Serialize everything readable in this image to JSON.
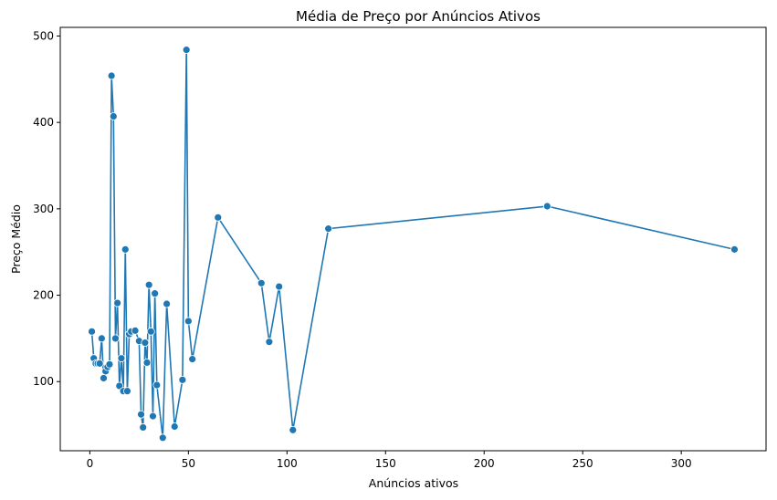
{
  "chart_data": {
    "type": "line",
    "title": "Média de Preço por Anúncios Ativos",
    "xlabel": "Anúncios ativos",
    "ylabel": "Preço Médio",
    "xlim": [
      -15,
      343
    ],
    "ylim": [
      20,
      510
    ],
    "xticks": [
      0,
      50,
      100,
      150,
      200,
      250,
      300
    ],
    "yticks": [
      100,
      200,
      300,
      400,
      500
    ],
    "grid": false,
    "legend": "none",
    "color": "#1f77b4",
    "marker": "circle",
    "series": [
      {
        "x": [
          1,
          2,
          3,
          4,
          5,
          6,
          7,
          8,
          9,
          10,
          11,
          12,
          13,
          14,
          15,
          16,
          17,
          18,
          19,
          20,
          21,
          23,
          25,
          26,
          27,
          28,
          29,
          30,
          31,
          32,
          33,
          34,
          37,
          39,
          43,
          47,
          49,
          50,
          52,
          65,
          87,
          91,
          96,
          103,
          121,
          232,
          327
        ],
        "y": [
          158,
          127,
          121,
          121,
          121,
          150,
          104,
          112,
          117,
          120,
          454,
          407,
          150,
          191,
          95,
          127,
          89,
          253,
          89,
          155,
          158,
          159,
          147,
          62,
          47,
          145,
          122,
          212,
          158,
          60,
          202,
          96,
          35,
          190,
          48,
          102,
          484,
          170,
          126,
          290,
          214,
          146,
          210,
          44,
          277,
          303,
          253
        ]
      }
    ]
  }
}
